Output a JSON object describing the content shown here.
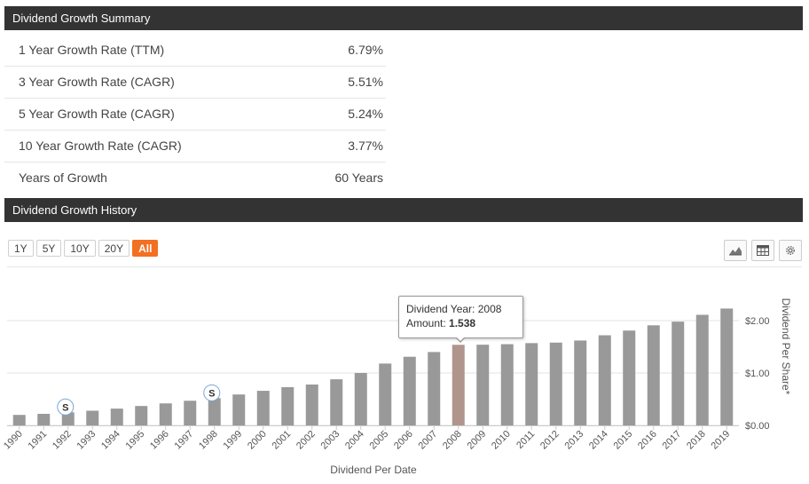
{
  "summary": {
    "header": "Dividend Growth Summary",
    "rows": [
      {
        "label": "1 Year Growth Rate (TTM)",
        "value": "6.79%"
      },
      {
        "label": "3 Year Growth Rate (CAGR)",
        "value": "5.51%"
      },
      {
        "label": "5 Year Growth Rate (CAGR)",
        "value": "5.24%"
      },
      {
        "label": "10 Year Growth Rate (CAGR)",
        "value": "3.77%"
      },
      {
        "label": "Years of Growth",
        "value": "60 Years"
      }
    ]
  },
  "history": {
    "header": "Dividend Growth History",
    "ranges": [
      {
        "label": "1Y",
        "active": false
      },
      {
        "label": "5Y",
        "active": false
      },
      {
        "label": "10Y",
        "active": false
      },
      {
        "label": "20Y",
        "active": false
      },
      {
        "label": "All",
        "active": true
      }
    ],
    "tools": [
      "area-chart-icon",
      "table-icon",
      "gear-icon"
    ],
    "tooltip": {
      "year_label": "Dividend Year: 2008",
      "amount_label": "Amount:",
      "amount_value": "1.538"
    }
  },
  "colors": {
    "bar": "#999999",
    "bar_highlight": "#b0958d",
    "accent": "#f36f21",
    "header_bg": "#333333"
  },
  "chart_data": {
    "type": "bar",
    "xlabel": "Dividend Per Date",
    "ylabel": "Dividend Per Share*",
    "ylim": [
      0,
      2.5
    ],
    "ytick_labels": [
      "$0.00",
      "$1.00",
      "$2.00"
    ],
    "yticks": [
      0,
      1,
      2
    ],
    "grid": true,
    "categories": [
      "1990",
      "1991",
      "1992",
      "1993",
      "1994",
      "1995",
      "1996",
      "1997",
      "1998",
      "1999",
      "2000",
      "2001",
      "2002",
      "2003",
      "2004",
      "2005",
      "2006",
      "2007",
      "2008",
      "2009",
      "2010",
      "2011",
      "2012",
      "2013",
      "2014",
      "2015",
      "2016",
      "2017",
      "2018",
      "2019"
    ],
    "values": [
      0.2,
      0.22,
      0.25,
      0.28,
      0.32,
      0.37,
      0.42,
      0.47,
      0.52,
      0.59,
      0.66,
      0.73,
      0.78,
      0.88,
      1.0,
      1.18,
      1.31,
      1.4,
      1.538,
      1.54,
      1.55,
      1.57,
      1.58,
      1.62,
      1.72,
      1.81,
      1.91,
      1.98,
      2.11,
      2.23
    ],
    "highlight": "2008",
    "split_markers": [
      {
        "year": "1992",
        "label": "S"
      },
      {
        "year": "1998",
        "label": "S"
      }
    ]
  }
}
